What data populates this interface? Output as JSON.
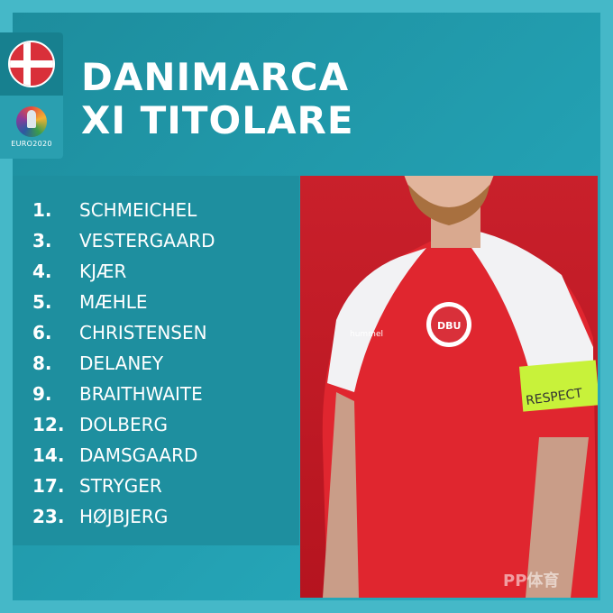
{
  "header": {
    "line1": "DANIMARCA",
    "line2": "XI TITOLARE"
  },
  "badges": {
    "flag_icon": "denmark-flag",
    "tournament_logo": "EURO2020"
  },
  "lineup": [
    {
      "number": "1.",
      "name": "SCHMEICHEL"
    },
    {
      "number": "3.",
      "name": "VESTERGAARD"
    },
    {
      "number": "4.",
      "name": "KJÆR"
    },
    {
      "number": "5.",
      "name": "MÆHLE"
    },
    {
      "number": "6.",
      "name": "CHRISTENSEN"
    },
    {
      "number": "8.",
      "name": "DELANEY"
    },
    {
      "number": "9.",
      "name": "BRAITHWAITE"
    },
    {
      "number": "12.",
      "name": "DOLBERG"
    },
    {
      "number": "14.",
      "name": "DAMSGAARD"
    },
    {
      "number": "17.",
      "name": "STRYGER"
    },
    {
      "number": "23.",
      "name": "HØJBJERG"
    }
  ],
  "photo": {
    "armband_text": "RESPECT",
    "crest_text": "DBU",
    "sponsor": "hummel"
  },
  "watermark": "PP体育",
  "colors": {
    "background": "#45b8c8",
    "panel": "#1e8f9f",
    "photo_bg": "#c9202b",
    "armband": "#c8f23a"
  }
}
